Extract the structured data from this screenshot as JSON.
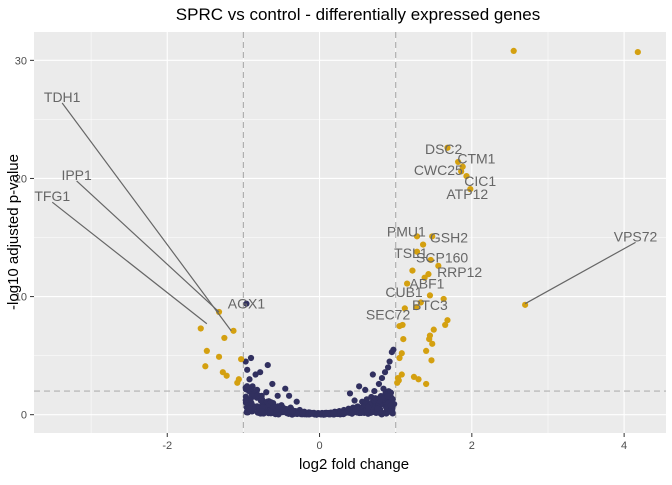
{
  "chart_data": {
    "type": "scatter",
    "title": "SPRC vs control - differentially expressed genes",
    "xlabel": "log2 fold change",
    "ylabel": "-log10 adjusted p-value",
    "xlim": [
      -3.75,
      4.55
    ],
    "ylim": [
      -1.55,
      32.4
    ],
    "x_ticks": [
      -2,
      0,
      2,
      4
    ],
    "y_ticks": [
      0,
      10,
      20,
      30
    ],
    "x_tick_labels": [
      "-2",
      "0",
      "2",
      "4"
    ],
    "y_tick_labels": [
      "0",
      "10",
      "20",
      "30"
    ],
    "grid": true,
    "legend": "none",
    "thresholds": {
      "log2fc": [
        -1,
        1
      ],
      "neg_log10_padj": 2
    },
    "colors": {
      "significant": "#d4a010",
      "not_significant": "#31305f",
      "background": "#ebebeb"
    },
    "significant_points": [
      [
        2.55,
        30.8
      ],
      [
        4.18,
        30.7
      ],
      [
        1.68,
        22.6
      ],
      [
        1.82,
        21.4
      ],
      [
        1.88,
        21.0
      ],
      [
        1.86,
        20.6
      ],
      [
        1.93,
        20.2
      ],
      [
        1.98,
        19.1
      ],
      [
        1.28,
        15.1
      ],
      [
        1.48,
        15.1
      ],
      [
        1.36,
        14.4
      ],
      [
        1.28,
        13.8
      ],
      [
        1.46,
        13.1
      ],
      [
        1.56,
        12.6
      ],
      [
        1.22,
        12.2
      ],
      [
        1.43,
        11.9
      ],
      [
        1.38,
        11.6
      ],
      [
        1.15,
        11.1
      ],
      [
        1.45,
        10.1
      ],
      [
        1.63,
        9.8
      ],
      [
        1.33,
        9.5
      ],
      [
        1.12,
        9.0
      ],
      [
        1.27,
        9.1
      ],
      [
        1.09,
        7.6
      ],
      [
        1.05,
        7.5
      ],
      [
        1.65,
        7.6
      ],
      [
        1.68,
        8.0
      ],
      [
        1.5,
        7.2
      ],
      [
        1.45,
        6.7
      ],
      [
        1.44,
        6.4
      ],
      [
        1.48,
        6.0
      ],
      [
        1.4,
        5.4
      ],
      [
        1.47,
        4.6
      ],
      [
        1.1,
        6.4
      ],
      [
        1.08,
        5.2
      ],
      [
        1.05,
        4.8
      ],
      [
        1.08,
        3.4
      ],
      [
        1.24,
        3.2
      ],
      [
        1.3,
        3.0
      ],
      [
        1.03,
        3.1
      ],
      [
        1.02,
        2.7
      ],
      [
        1.4,
        2.6
      ],
      [
        1.04,
        2.9
      ],
      [
        2.7,
        9.3
      ],
      [
        -1.56,
        7.3
      ],
      [
        -1.32,
        8.7
      ],
      [
        -1.13,
        7.1
      ],
      [
        -1.25,
        6.5
      ],
      [
        -1.48,
        5.4
      ],
      [
        -1.32,
        4.9
      ],
      [
        -1.5,
        4.1
      ],
      [
        -1.27,
        3.6
      ],
      [
        -1.22,
        3.3
      ],
      [
        -1.08,
        2.7
      ],
      [
        -1.03,
        4.7
      ],
      [
        -1.06,
        3.0
      ]
    ],
    "not_significant_points": [
      [
        -0.96,
        9.4
      ],
      [
        -0.9,
        4.8
      ],
      [
        -0.97,
        4.5
      ],
      [
        -0.95,
        3.8
      ],
      [
        -0.92,
        3.0
      ],
      [
        -0.88,
        2.4
      ],
      [
        -0.82,
        2.1
      ],
      [
        -0.76,
        1.6
      ],
      [
        -0.84,
        3.4
      ],
      [
        -0.68,
        4.2
      ],
      [
        -0.78,
        3.6
      ],
      [
        -0.7,
        1.9
      ],
      [
        -0.62,
        2.6
      ],
      [
        -0.55,
        1.6
      ],
      [
        -0.94,
        0.5
      ],
      [
        -0.86,
        0.7
      ],
      [
        -0.8,
        0.4
      ],
      [
        -0.72,
        0.6
      ],
      [
        -0.65,
        0.9
      ],
      [
        -0.58,
        0.5
      ],
      [
        -0.5,
        0.8
      ],
      [
        -0.44,
        0.4
      ],
      [
        -0.38,
        0.6
      ],
      [
        -0.32,
        0.3
      ],
      [
        -0.26,
        0.4
      ],
      [
        -0.2,
        0.25
      ],
      [
        -0.14,
        0.2
      ],
      [
        -0.08,
        0.1
      ],
      [
        0.0,
        0.05
      ],
      [
        0.08,
        0.1
      ],
      [
        0.14,
        0.15
      ],
      [
        0.2,
        0.25
      ],
      [
        0.26,
        0.3
      ],
      [
        0.32,
        0.4
      ],
      [
        0.38,
        0.5
      ],
      [
        0.44,
        0.6
      ],
      [
        0.5,
        0.7
      ],
      [
        0.56,
        1.1
      ],
      [
        0.62,
        1.3
      ],
      [
        0.68,
        1.5
      ],
      [
        0.72,
        2.0
      ],
      [
        0.78,
        2.6
      ],
      [
        0.82,
        3.1
      ],
      [
        0.86,
        3.6
      ],
      [
        0.9,
        4.0
      ],
      [
        0.92,
        4.5
      ],
      [
        0.95,
        5.3
      ],
      [
        0.97,
        5.5
      ],
      [
        0.88,
        1.4
      ],
      [
        0.76,
        1.0
      ],
      [
        0.64,
        0.9
      ],
      [
        0.58,
        0.6
      ],
      [
        0.98,
        0.9
      ],
      [
        0.94,
        1.2
      ],
      [
        0.84,
        2.2
      ],
      [
        0.7,
        3.4
      ],
      [
        -0.4,
        1.6
      ],
      [
        -0.3,
        1.1
      ],
      [
        -0.45,
        2.2
      ],
      [
        0.4,
        1.8
      ],
      [
        0.46,
        1.2
      ],
      [
        0.52,
        2.4
      ],
      [
        0.6,
        2.1
      ]
    ],
    "labels": [
      {
        "text": "TDH1",
        "x": -3.38,
        "y": 26.9,
        "px": -1.16,
        "py": 7.1
      },
      {
        "text": "IPP1",
        "x": -3.19,
        "y": 20.3,
        "px": -1.32,
        "py": 8.7
      },
      {
        "text": "TFG1",
        "x": -3.51,
        "y": 18.5,
        "px": -1.48,
        "py": 7.7
      },
      {
        "text": "AGX1",
        "x": -0.96,
        "y": 9.4
      },
      {
        "text": "DSC2",
        "x": 1.63,
        "y": 22.5
      },
      {
        "text": "CTM1",
        "x": 2.06,
        "y": 21.7
      },
      {
        "text": "CWC25",
        "x": 1.56,
        "y": 20.7
      },
      {
        "text": "CIC1",
        "x": 2.11,
        "y": 19.8
      },
      {
        "text": "ATP12",
        "x": 1.94,
        "y": 18.7
      },
      {
        "text": "VPS72",
        "x": 4.15,
        "y": 15.1,
        "px": 2.7,
        "py": 9.4
      },
      {
        "text": "PMU1",
        "x": 1.14,
        "y": 15.5
      },
      {
        "text": "GSH2",
        "x": 1.7,
        "y": 15.0
      },
      {
        "text": "TSL1",
        "x": 1.2,
        "y": 13.7
      },
      {
        "text": "SCP160",
        "x": 1.61,
        "y": 13.3
      },
      {
        "text": "RRP12",
        "x": 1.84,
        "y": 12.1
      },
      {
        "text": "ABF1",
        "x": 1.41,
        "y": 11.1
      },
      {
        "text": "CUB1",
        "x": 1.11,
        "y": 10.4
      },
      {
        "text": "BTC3",
        "x": 1.45,
        "y": 9.3
      },
      {
        "text": "SEC72",
        "x": 0.9,
        "y": 8.5
      }
    ]
  }
}
